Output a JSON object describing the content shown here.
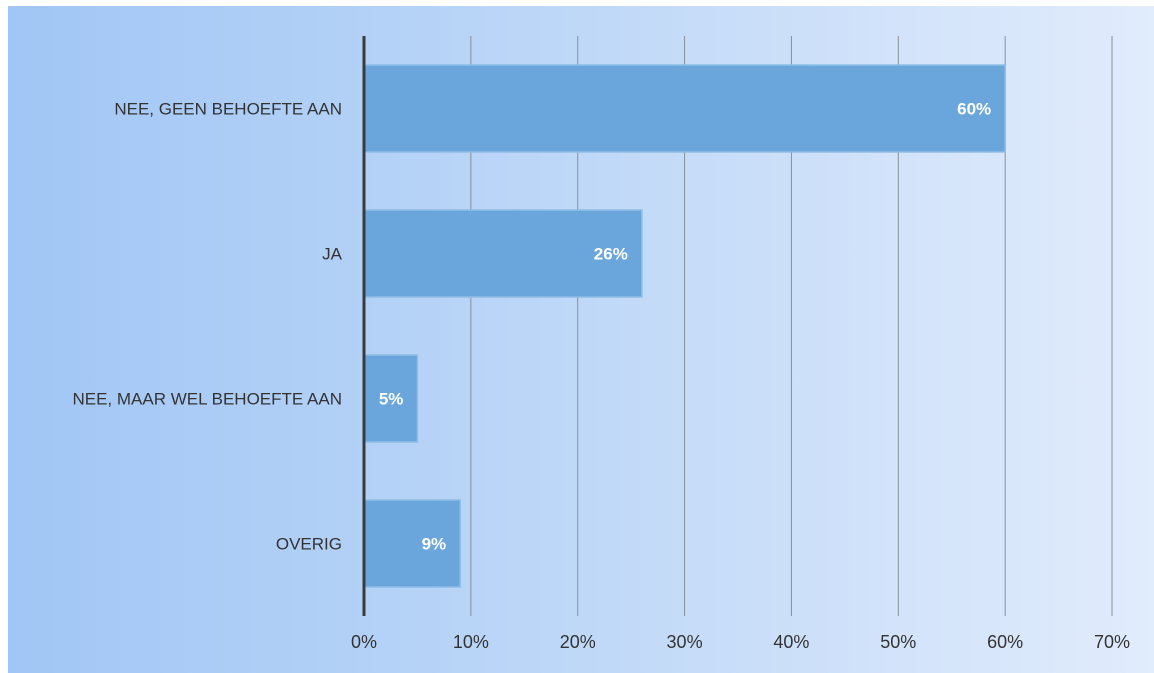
{
  "chart_data": {
    "type": "bar",
    "orientation": "horizontal",
    "categories": [
      "NEE, GEEN BEHOEFTE AAN",
      "JA",
      "NEE, MAAR WEL BEHOEFTE AAN",
      "OVERIG"
    ],
    "values": [
      60,
      26,
      5,
      9
    ],
    "data_labels": [
      "60%",
      "26%",
      "5%",
      "9%"
    ],
    "x_ticks": [
      "0%",
      "10%",
      "20%",
      "30%",
      "40%",
      "50%",
      "60%",
      "70%"
    ],
    "xlim": [
      0,
      70
    ],
    "grid": true,
    "legend": "none",
    "title": "",
    "xlabel": "",
    "ylabel": "",
    "colors": {
      "bar": "#6aa6dc",
      "bar_stroke": "#8fbde6",
      "axis": "#3a3a3a",
      "grid": "#8a8f96",
      "background_start": "#a1c6f5",
      "background_end": "#e1ecfc"
    }
  }
}
